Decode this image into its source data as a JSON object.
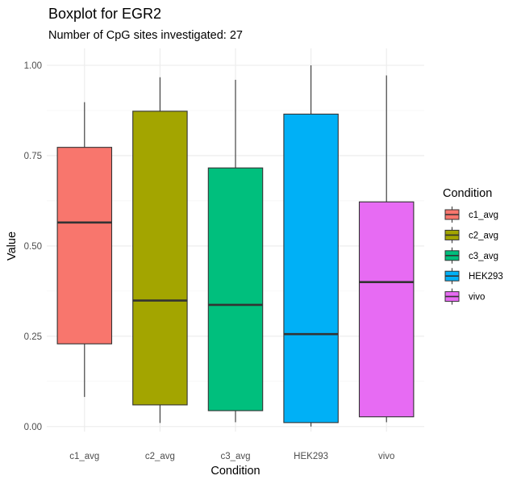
{
  "chart_data": {
    "type": "boxplot",
    "title": "Boxplot for EGR2",
    "subtitle": "Number of CpG sites investigated: 27",
    "xlabel": "Condition",
    "ylabel": "Value",
    "ylim": [
      -0.01,
      1.05
    ],
    "yticks": [
      0.0,
      0.25,
      0.5,
      0.75,
      1.0
    ],
    "ytick_labels": [
      "0.00",
      "0.25",
      "0.50",
      "0.75",
      "1.00"
    ],
    "grid": true,
    "legend": {
      "title": "Condition",
      "position": "right"
    },
    "categories": [
      "c1_avg",
      "c2_avg",
      "c3_avg",
      "HEK293",
      "vivo"
    ],
    "series": [
      {
        "name": "c1_avg",
        "color": "#F8766D",
        "whisker_low": 0.082,
        "q1": 0.229,
        "median": 0.565,
        "q3": 0.773,
        "whisker_high": 0.898
      },
      {
        "name": "c2_avg",
        "color": "#A3A500",
        "whisker_low": 0.01,
        "q1": 0.06,
        "median": 0.349,
        "q3": 0.873,
        "whisker_high": 0.967
      },
      {
        "name": "c3_avg",
        "color": "#00BF7D",
        "whisker_low": 0.012,
        "q1": 0.044,
        "median": 0.337,
        "q3": 0.716,
        "whisker_high": 0.96
      },
      {
        "name": "HEK293",
        "color": "#00B0F6",
        "whisker_low": 0.0,
        "q1": 0.011,
        "median": 0.256,
        "q3": 0.865,
        "whisker_high": 1.0
      },
      {
        "name": "vivo",
        "color": "#E76BF3",
        "whisker_low": 0.012,
        "q1": 0.027,
        "median": 0.4,
        "q3": 0.622,
        "whisker_high": 0.972
      }
    ]
  }
}
